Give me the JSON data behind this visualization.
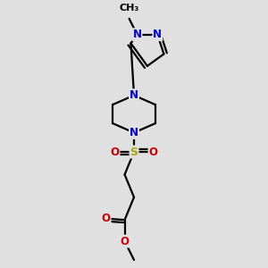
{
  "bg_color": "#e0e0e0",
  "bond_color": "#000000",
  "N_color": "#0000cc",
  "O_color": "#cc0000",
  "S_color": "#aaaa00",
  "font_size": 8.5,
  "bond_width": 1.6,
  "fig_size": [
    3.0,
    3.0
  ],
  "dpi": 100,
  "xlim": [
    0,
    10
  ],
  "ylim": [
    0,
    10
  ]
}
